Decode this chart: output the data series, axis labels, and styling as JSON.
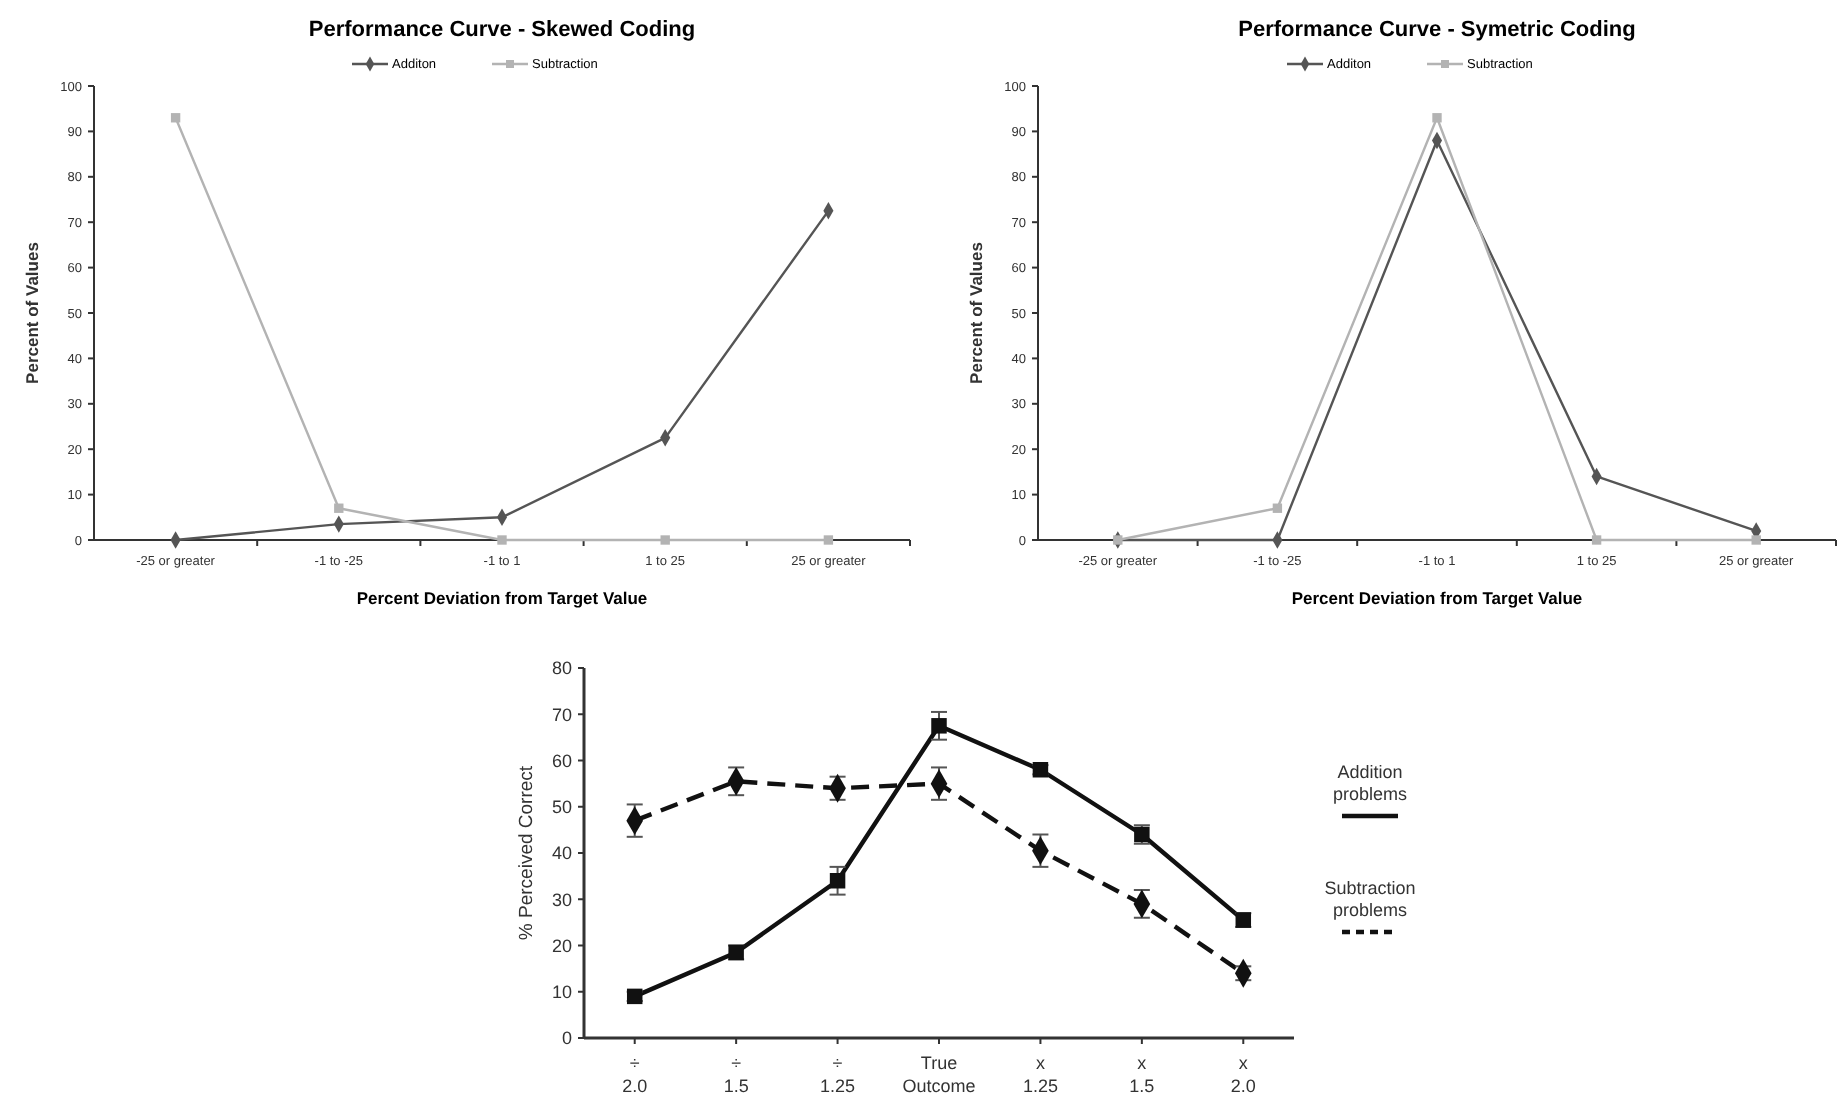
{
  "chart_data": [
    {
      "type": "line",
      "title": "Performance Curve - Skewed Coding",
      "xlabel": "Percent Deviation from Target Value",
      "ylabel": "Percent of Values",
      "categories": [
        "-25  or greater",
        "-1 to -25",
        "-1 to 1",
        "1 to 25",
        "25 or greater"
      ],
      "ylim": [
        0,
        100
      ],
      "yticks": [
        0,
        10,
        20,
        30,
        40,
        50,
        60,
        70,
        80,
        90,
        100
      ],
      "legend": "top",
      "series": [
        {
          "name": "Additon",
          "color": "#555555",
          "marker": "diamond",
          "values": [
            0,
            3.5,
            5,
            22.5,
            72.5
          ]
        },
        {
          "name": "Subtraction",
          "color": "#b3b3b3",
          "marker": "square",
          "values": [
            93,
            7,
            0,
            0,
            0
          ]
        }
      ]
    },
    {
      "type": "line",
      "title": "Performance Curve - Symetric Coding",
      "xlabel": "Percent Deviation from Target Value",
      "ylabel": "Percent of Values",
      "categories": [
        "-25  or greater",
        "-1 to -25",
        "-1 to 1",
        "1 to 25",
        "25 or greater"
      ],
      "ylim": [
        0,
        100
      ],
      "yticks": [
        0,
        10,
        20,
        30,
        40,
        50,
        60,
        70,
        80,
        90,
        100
      ],
      "legend": "top",
      "series": [
        {
          "name": "Additon",
          "color": "#555555",
          "marker": "diamond",
          "values": [
            0,
            0,
            88,
            14,
            2
          ]
        },
        {
          "name": "Subtraction",
          "color": "#b3b3b3",
          "marker": "square",
          "values": [
            0,
            7,
            93,
            0,
            0
          ]
        }
      ]
    },
    {
      "type": "line",
      "ylabel": "% Perceived Correct",
      "categories": [
        "÷\n2.0",
        "÷\n1.5",
        "÷\n1.25",
        "True\nOutcome",
        "x\n1.25",
        "x\n1.5",
        "x\n2.0"
      ],
      "ylim": [
        0,
        80
      ],
      "yticks": [
        0,
        10,
        20,
        30,
        40,
        50,
        60,
        70,
        80
      ],
      "legend": "right",
      "series": [
        {
          "name": "Addition problems",
          "color": "#111111",
          "marker": "square",
          "line_style": "solid",
          "values": [
            9,
            18.5,
            34,
            67.5,
            58,
            44,
            25.5
          ],
          "errors": [
            1,
            1.5,
            3,
            3,
            1,
            2,
            1.5
          ]
        },
        {
          "name": "Subtraction problems",
          "color": "#111111",
          "marker": "diamond",
          "line_style": "dashed",
          "values": [
            47,
            55.5,
            54,
            55,
            40.5,
            29,
            14
          ],
          "errors": [
            3.5,
            3,
            2.5,
            3.5,
            3.5,
            3,
            1.5
          ]
        }
      ]
    }
  ]
}
